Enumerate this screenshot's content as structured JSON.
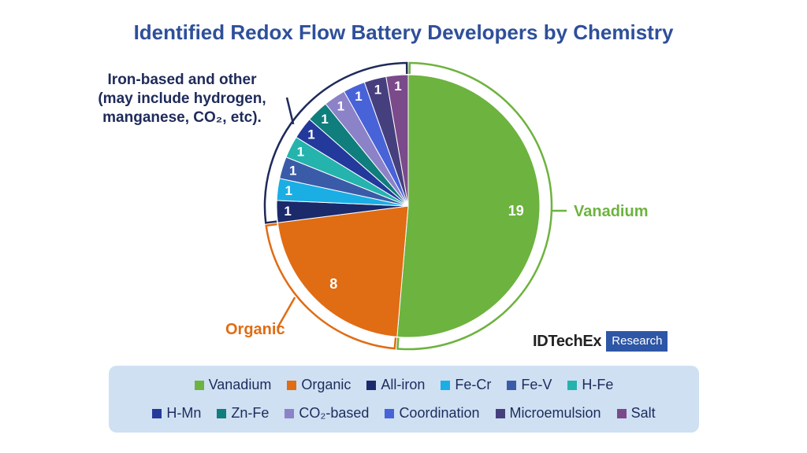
{
  "title": "Identified Redox Flow Battery Developers by Chemistry",
  "chart_data": {
    "type": "pie",
    "slices": [
      {
        "name": "Vanadium",
        "value": 19,
        "color": "#6db33f"
      },
      {
        "name": "Organic",
        "value": 8,
        "color": "#e06c14"
      },
      {
        "name": "All-iron",
        "value": 1,
        "color": "#1b2a6b"
      },
      {
        "name": "Fe-Cr",
        "value": 1,
        "color": "#1aaee5"
      },
      {
        "name": "Fe-V",
        "value": 1,
        "color": "#3a5ca8"
      },
      {
        "name": "H-Fe",
        "value": 1,
        "color": "#24b3ad"
      },
      {
        "name": "H-Mn",
        "value": 1,
        "color": "#23399c"
      },
      {
        "name": "Zn-Fe",
        "value": 1,
        "color": "#0f7e7c"
      },
      {
        "name": "CO₂-based",
        "value": 1,
        "color": "#8c82c8"
      },
      {
        "name": "Coordination",
        "value": 1,
        "color": "#4862d8"
      },
      {
        "name": "Microemulsion",
        "value": 1,
        "color": "#463f7e"
      },
      {
        "name": "Salt",
        "value": 1,
        "color": "#7b4a8a"
      }
    ],
    "groups": [
      {
        "label": "Vanadium",
        "color": "#6db33f"
      },
      {
        "label": "Organic",
        "color": "#e06c14"
      },
      {
        "label": "Iron-based and other (may include hydrogen, manganese, CO₂, etc).",
        "color": "#1e2a5a"
      }
    ],
    "legend_position": "bottom"
  },
  "labels": {
    "iron_group": [
      "Iron-based and other",
      "(may include hydrogen,",
      "manganese, CO₂, etc)."
    ],
    "vanadium_group": "Vanadium",
    "organic_group": "Organic"
  },
  "brand": {
    "name": "IDTechEx",
    "tag": "Research"
  },
  "legend": {
    "row1": [
      {
        "name": "Vanadium",
        "color": "#6db33f"
      },
      {
        "name": "Organic",
        "color": "#e06c14"
      },
      {
        "name": "All-iron",
        "color": "#1b2a6b"
      },
      {
        "name": "Fe-Cr",
        "color": "#1aaee5"
      },
      {
        "name": "Fe-V",
        "color": "#3a5ca8"
      },
      {
        "name": "H-Fe",
        "color": "#24b3ad"
      }
    ],
    "row2": [
      {
        "name": "H-Mn",
        "color": "#23399c"
      },
      {
        "name": "Zn-Fe",
        "color": "#0f7e7c"
      },
      {
        "name": "CO₂-based",
        "color": "#8c82c8"
      },
      {
        "name": "Coordination",
        "color": "#4862d8"
      },
      {
        "name": "Microemulsion",
        "color": "#463f7e"
      },
      {
        "name": "Salt",
        "color": "#7b4a8a"
      }
    ]
  }
}
